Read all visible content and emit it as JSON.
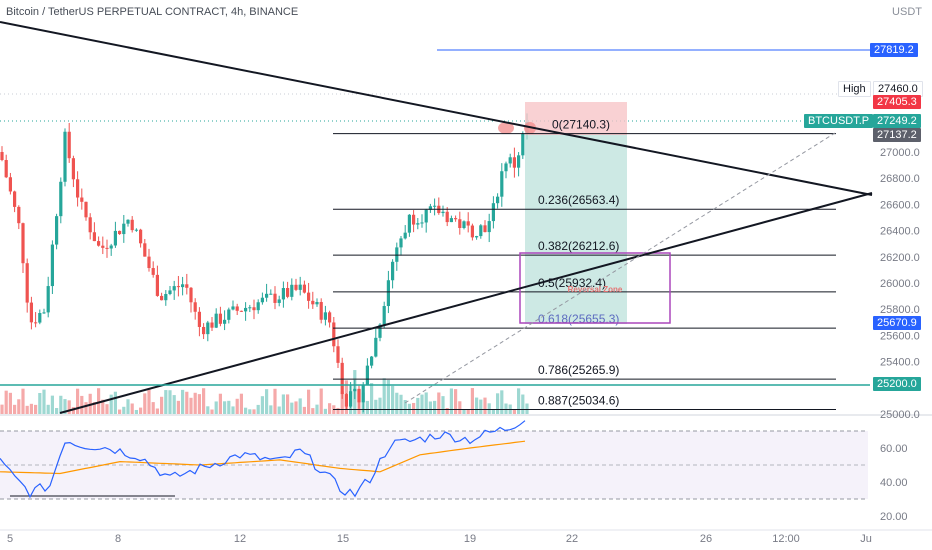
{
  "header": {
    "symbol_title": "Bitcoin / TetherUS PERPETUAL CONTRACT, 4h, BINANCE",
    "currency": "USDT"
  },
  "price_scale": {
    "ticks": [
      "27000.0",
      "26800.0",
      "26600.0",
      "26400.0",
      "26200.0",
      "26000.0",
      "25800.0",
      "25600.0",
      "25400.0",
      "25000.0"
    ],
    "labels": {
      "tp_line": "27819.2",
      "high_label": "High",
      "high_value": "27460.0",
      "red_label": "27405.3",
      "symbol_tag": "BTCUSDT.P",
      "last_price": "27249.2",
      "countdown": "27137.2",
      "sl_level": "25670.9",
      "support_level": "25200.0"
    }
  },
  "fib": {
    "levels": [
      {
        "label": "0(27140.3)",
        "value": 27140.3
      },
      {
        "label": "0.236(26563.4)",
        "value": 26563.4
      },
      {
        "label": "0.382(26212.6)",
        "value": 26212.6
      },
      {
        "label": "0.5(25932.4)",
        "value": 25932.4
      },
      {
        "label": "0.618(25655.3)",
        "value": 25655.3
      },
      {
        "label": "0.786(25265.9)",
        "value": 25265.9
      },
      {
        "label": "0.887(25034.6)",
        "value": 25034.6
      }
    ],
    "zone_label": "Reversal Zone"
  },
  "rsi": {
    "ticks": [
      "60.00",
      "40.00",
      "20.00"
    ]
  },
  "time_axis": {
    "labels": [
      "5",
      "8",
      "12",
      "15",
      "19",
      "22",
      "26",
      "12:00",
      "Ju"
    ]
  },
  "colors": {
    "up": "#26a69a",
    "down": "#ef5350",
    "blue_line": "#2962ff",
    "fib": "#131722",
    "zone": "#9c27b0",
    "rsi_line": "#2962ff",
    "rsi_ma": "#ff9800"
  }
}
